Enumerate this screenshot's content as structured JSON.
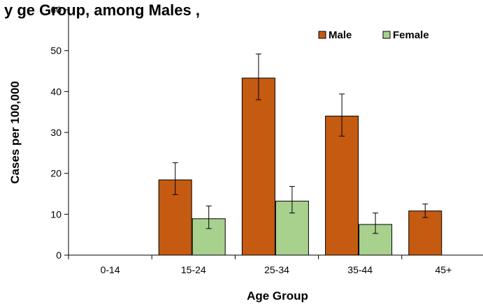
{
  "chart_data": {
    "type": "bar",
    "title": "y                  ge Group, among Males ,",
    "xlabel": "Age Group",
    "ylabel": "Cases per 100,000",
    "categories": [
      "0-14",
      "15-24",
      "25-34",
      "35-44",
      "45+"
    ],
    "ylim": [
      0,
      60
    ],
    "yticks": [
      0,
      10,
      20,
      30,
      40,
      50,
      60
    ],
    "grid": false,
    "legend_position": "top-right",
    "series": [
      {
        "name": "Male",
        "color": "#C55A11",
        "values": [
          0,
          18.4,
          43.3,
          34.0,
          10.8
        ],
        "error_low": [
          null,
          14.8,
          38.0,
          29.1,
          9.2
        ],
        "error_high": [
          null,
          22.6,
          49.2,
          39.4,
          12.5
        ]
      },
      {
        "name": "Female",
        "color": "#A9D18E",
        "values": [
          0,
          8.9,
          13.2,
          7.5,
          0
        ],
        "error_low": [
          null,
          6.5,
          10.3,
          5.3,
          null
        ],
        "error_high": [
          null,
          12.0,
          16.8,
          10.3,
          null
        ]
      }
    ]
  }
}
